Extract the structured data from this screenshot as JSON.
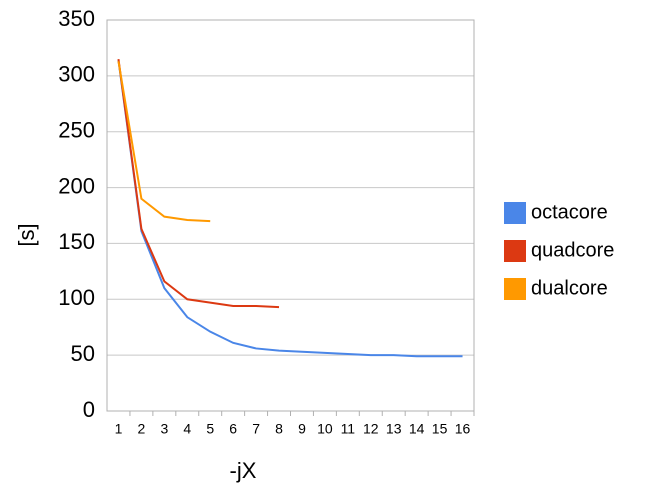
{
  "chart_data": {
    "type": "line",
    "x_label": "-jX",
    "y_label": "[s]",
    "categories": [
      "1",
      "2",
      "3",
      "4",
      "5",
      "6",
      "7",
      "8",
      "9",
      "10",
      "11",
      "12",
      "13",
      "14",
      "15",
      "16"
    ],
    "series": [
      {
        "name": "octacore",
        "color": "#4a86e8",
        "values": [
          314,
          161,
          110,
          84,
          71,
          61,
          56,
          54,
          53,
          52,
          51,
          50,
          50,
          49,
          49,
          49
        ]
      },
      {
        "name": "quadcore",
        "color": "#dc3912",
        "values": [
          315,
          163,
          116,
          100,
          97,
          94,
          94,
          93,
          null,
          null,
          null,
          null,
          null,
          null,
          null,
          null
        ]
      },
      {
        "name": "dualcore",
        "color": "#ff9900",
        "values": [
          313,
          190,
          174,
          171,
          170,
          null,
          null,
          null,
          null,
          null,
          null,
          null,
          null,
          null,
          null,
          null
        ]
      }
    ],
    "ylim": [
      0,
      350
    ],
    "yticks": [
      0,
      50,
      100,
      150,
      200,
      250,
      300,
      350
    ],
    "grid": true
  }
}
